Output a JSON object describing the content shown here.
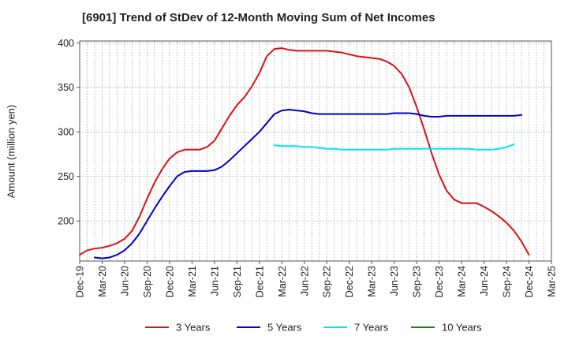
{
  "chart_data": {
    "type": "line",
    "title": "[6901]  Trend of StDev of 12-Month Moving Sum of Net Incomes",
    "ylabel": "Amount (million yen)",
    "xlabel": "",
    "ylim": [
      155,
      402
    ],
    "y_ticks": [
      200,
      250,
      300,
      350,
      400
    ],
    "x_ticks": [
      "Dec-19",
      "Mar-20",
      "Jun-20",
      "Sep-20",
      "Dec-20",
      "Mar-21",
      "Jun-21",
      "Sep-21",
      "Dec-21",
      "Mar-22",
      "Jun-22",
      "Sep-22",
      "Dec-22",
      "Mar-23",
      "Jun-23",
      "Sep-23",
      "Dec-23",
      "Mar-24",
      "Jun-24",
      "Sep-24",
      "Dec-24",
      "Mar-25"
    ],
    "grid": true,
    "legend_position": "bottom",
    "series": [
      {
        "name": "3 Years",
        "color": "#dd1111",
        "start_index": 0,
        "values": [
          162,
          167,
          169,
          170,
          172,
          175,
          180,
          189,
          205,
          225,
          243,
          258,
          270,
          277,
          280,
          280,
          280,
          283,
          290,
          304,
          318,
          330,
          339,
          351,
          366,
          385,
          393,
          394,
          392,
          391,
          391,
          391,
          391,
          391,
          390,
          389,
          387,
          385,
          384,
          383,
          382,
          379,
          374,
          365,
          350,
          328,
          303,
          276,
          252,
          234,
          224,
          220,
          220,
          220,
          216,
          211,
          205,
          198,
          189,
          177,
          162
        ]
      },
      {
        "name": "5 Years",
        "color": "#0000cc",
        "start_index": 2,
        "values": [
          159,
          158,
          159,
          162,
          167,
          175,
          186,
          200,
          214,
          227,
          239,
          250,
          255,
          256,
          256,
          256,
          257,
          261,
          268,
          276,
          284,
          292,
          300,
          310,
          320,
          324,
          325,
          324,
          323,
          321,
          320,
          320,
          320,
          320,
          320,
          320,
          320,
          320,
          320,
          320,
          321,
          321,
          321,
          320,
          318,
          317,
          317,
          318,
          318,
          318,
          318,
          318,
          318,
          318,
          318,
          318,
          318,
          319
        ]
      },
      {
        "name": "7 Years",
        "color": "#00e5ee",
        "start_index": 26,
        "values": [
          285,
          284,
          284,
          284,
          283,
          283,
          282,
          281,
          281,
          280,
          280,
          280,
          280,
          280,
          280,
          280,
          281,
          281,
          281,
          281,
          281,
          281,
          281,
          281,
          281,
          281,
          281,
          280,
          280,
          280,
          281,
          283,
          286
        ]
      },
      {
        "name": "10 Years",
        "color": "#118811",
        "start_index": 0,
        "values": []
      }
    ]
  }
}
